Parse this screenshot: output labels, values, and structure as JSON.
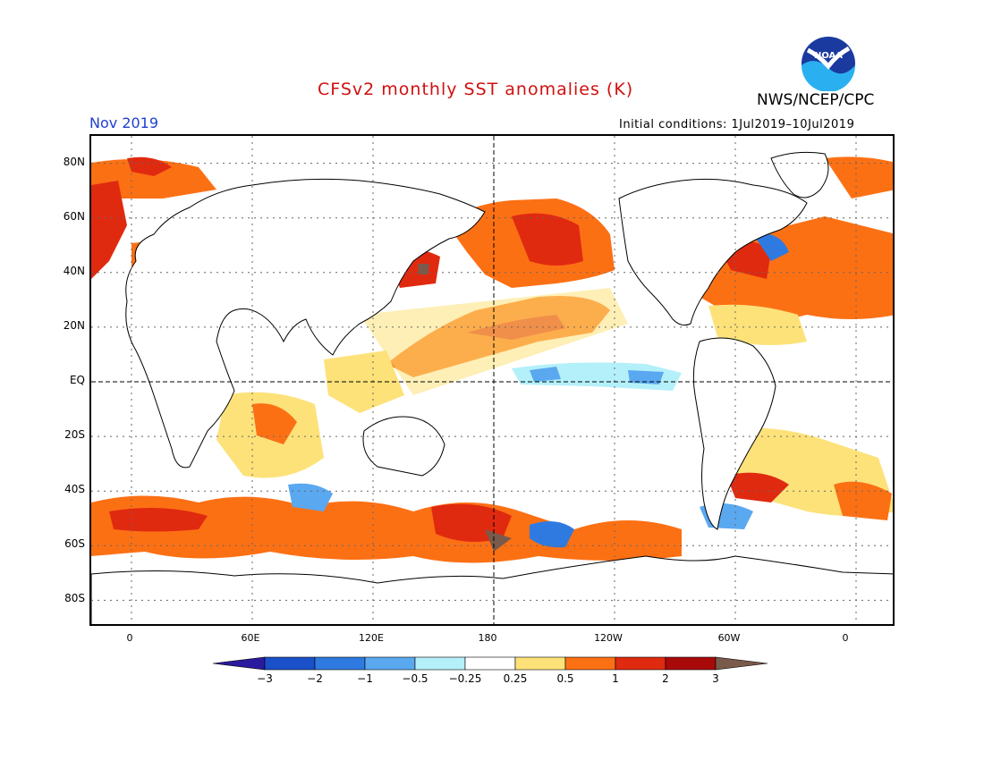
{
  "header": {
    "title": "CFSv2 monthly SST anomalies (K)",
    "agency": "NWS/NCEP/CPC",
    "logo_text": "NOAA",
    "month": "Nov 2019",
    "initial_conditions": "Initial conditions: 1Jul2019–10Jul2019"
  },
  "map": {
    "projection": "equirectangular",
    "lon_range": [
      -20,
      380
    ],
    "lat_range": [
      -90,
      90
    ],
    "lat_ticks": [
      "80N",
      "60N",
      "40N",
      "20N",
      "EQ",
      "20S",
      "40S",
      "60S",
      "80S"
    ],
    "lon_ticks": [
      "0",
      "60E",
      "120E",
      "180",
      "120W",
      "60W",
      "0"
    ],
    "colors": {
      "frame": "#000000",
      "coast": "#000000",
      "grid": "#555555"
    }
  },
  "colorbar": {
    "labels": [
      "−3",
      "−2",
      "−1",
      "−0.5",
      "−0.25",
      "0.25",
      "0.5",
      "1",
      "2",
      "3"
    ],
    "colors": [
      "#2a1a9e",
      "#1a50c8",
      "#2f7ae0",
      "#5aa8f0",
      "#b4f0fa",
      "#ffffff",
      "#fde27a",
      "#fc7014",
      "#e02a10",
      "#a80a0a",
      "#7a5a4a"
    ]
  }
}
